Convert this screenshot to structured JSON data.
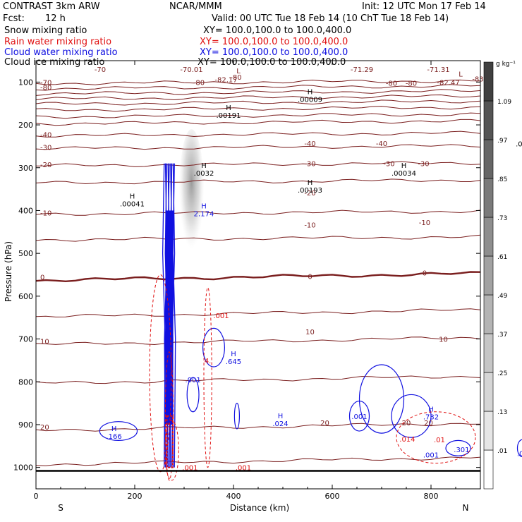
{
  "header": {
    "model": "CONTRAST  3km ARW",
    "center": "NCAR/MMM",
    "init": "Init: 12 UTC Mon 17 Feb 14",
    "fcst_label": "Fcst:",
    "fcst_value": "12 h",
    "valid": "Valid: 00 UTC Tue 18 Feb 14 (10 ChT Tue 18 Feb 14)"
  },
  "fields": [
    {
      "name": "Snow mixing ratio",
      "xy": "XY= 100.0,100.0 to 100.0,400.0",
      "color": "#000000"
    },
    {
      "name": "Rain water mixing ratio",
      "xy": "XY= 100.0,100.0 to 100.0,400.0",
      "color": "#e01010"
    },
    {
      "name": "Cloud water mixing ratio",
      "xy": "XY= 100.0,100.0 to 100.0,400.0",
      "color": "#1010e0"
    },
    {
      "name": "Cloud ice mixing ratio",
      "xy": "XY= 100.0,100.0 to 100.0,400.0",
      "color": "#000000"
    }
  ],
  "chart_data": {
    "type": "cross-section contour",
    "xlabel": "Distance (km)",
    "ylabel": "Pressure (hPa)",
    "xlim": [
      0,
      900
    ],
    "ylim": [
      1050,
      50
    ],
    "x_ticks": [
      0,
      200,
      400,
      600,
      800
    ],
    "y_ticks": [
      100,
      200,
      300,
      400,
      500,
      600,
      700,
      800,
      900,
      1000
    ],
    "x_end_labels": {
      "left": "S",
      "right": "N"
    },
    "colorbar": {
      "unit": "g kg⁻¹",
      "levels": [
        0.01,
        0.13,
        0.25,
        0.37,
        0.49,
        0.61,
        0.73,
        0.85,
        0.97,
        1.09
      ],
      "labels": [
        ".01",
        ".13",
        ".25",
        ".37",
        ".49",
        ".61",
        ".73",
        ".85",
        ".97",
        "1.09"
      ],
      "colors": [
        "#ffffff",
        "#e6e6e6",
        "#d6d6d6",
        "#c6c6c6",
        "#b4b4b4",
        "#a2a2a2",
        "#8e8e8e",
        "#7a7a7a",
        "#666666",
        "#545454",
        "#404040"
      ]
    },
    "isotherm_color": "#7a1e1e",
    "isotherms": [
      {
        "label": "-70",
        "base_p": 100,
        "bold": false
      },
      {
        "label": "-80",
        "base_p": 112,
        "bold": false
      },
      {
        "label": "",
        "base_p": 124,
        "bold": false
      },
      {
        "label": "",
        "base_p": 136,
        "bold": false
      },
      {
        "label": "",
        "base_p": 148,
        "bold": false
      },
      {
        "label": "",
        "base_p": 162,
        "bold": false
      },
      {
        "label": "",
        "base_p": 178,
        "bold": false
      },
      {
        "label": "",
        "base_p": 194,
        "bold": false
      },
      {
        "label": "-40",
        "base_p": 222,
        "bold": false
      },
      {
        "label": "-30",
        "base_p": 252,
        "bold": false
      },
      {
        "label": "-20",
        "base_p": 292,
        "bold": false
      },
      {
        "label": "",
        "base_p": 332,
        "bold": false
      },
      {
        "label": "-10",
        "base_p": 405,
        "bold": false
      },
      {
        "label": "",
        "base_p": 465,
        "bold": false
      },
      {
        "label": "0",
        "base_p": 555,
        "bold": true
      },
      {
        "label": "",
        "base_p": 640,
        "bold": false
      },
      {
        "label": "10",
        "base_p": 705,
        "bold": false
      },
      {
        "label": "",
        "base_p": 795,
        "bold": false
      },
      {
        "label": "20",
        "base_p": 905,
        "bold": false
      },
      {
        "label": "",
        "base_p": 985,
        "bold": false
      }
    ],
    "temperature_labels": [
      {
        "text": "-70",
        "x": 130,
        "p": 70
      },
      {
        "text": "-70.01",
        "x": 315,
        "p": 70
      },
      {
        "text": "-71.29",
        "x": 660,
        "p": 70
      },
      {
        "text": "-71.31",
        "x": 815,
        "p": 70
      },
      {
        "text": "-80",
        "x": 405,
        "p": 88
      },
      {
        "text": "-80",
        "x": 330,
        "p": 100
      },
      {
        "text": "-80",
        "x": 720,
        "p": 102
      },
      {
        "text": "-80",
        "x": 760,
        "p": 102
      },
      {
        "text": "-82.17",
        "x": 385,
        "p": 94
      },
      {
        "text": "-82.47",
        "x": 835,
        "p": 100
      },
      {
        "text": "-83",
        "x": 895,
        "p": 92
      },
      {
        "text": "-40",
        "x": 555,
        "p": 243
      },
      {
        "text": "-40",
        "x": 700,
        "p": 243
      },
      {
        "text": "-30",
        "x": 555,
        "p": 290
      },
      {
        "text": "-30",
        "x": 715,
        "p": 290
      },
      {
        "text": "-30",
        "x": 785,
        "p": 290
      },
      {
        "text": "-20",
        "x": 555,
        "p": 358
      },
      {
        "text": "-10",
        "x": 555,
        "p": 433
      },
      {
        "text": "-10",
        "x": 787,
        "p": 427
      },
      {
        "text": "0",
        "x": 555,
        "p": 553
      },
      {
        "text": "0",
        "x": 787,
        "p": 545
      },
      {
        "text": "10",
        "x": 555,
        "p": 683
      },
      {
        "text": "10",
        "x": 825,
        "p": 700
      },
      {
        "text": "20",
        "x": 585,
        "p": 895
      },
      {
        "text": "20",
        "x": 750,
        "p": 895
      },
      {
        "text": "20",
        "x": 795,
        "p": 895
      }
    ],
    "extrema": [
      {
        "kind": "L",
        "x": 410,
        "p": 80,
        "color": "#7a1e1e"
      },
      {
        "kind": "L",
        "x": 860,
        "p": 87,
        "color": "#7a1e1e"
      },
      {
        "kind": "L",
        "x": 993,
        "p": 80,
        "color": "#7a1e1e"
      },
      {
        "kind": "H",
        "value": ".00009",
        "x": 555,
        "p": 128,
        "color": "#000000"
      },
      {
        "kind": "H",
        "value": ".00191",
        "x": 390,
        "p": 165,
        "color": "#000000"
      },
      {
        "kind": "H",
        "value": ".0077",
        "x": 992,
        "p": 232,
        "color": "#000000"
      },
      {
        "kind": "H",
        "value": ".0032",
        "x": 340,
        "p": 300,
        "color": "#000000"
      },
      {
        "kind": "H",
        "value": ".00193",
        "x": 555,
        "p": 340,
        "color": "#000000"
      },
      {
        "kind": "H",
        "value": ".00034",
        "x": 745,
        "p": 300,
        "color": "#000000"
      },
      {
        "kind": "H",
        "value": ".00041",
        "x": 195,
        "p": 372,
        "color": "#000000"
      },
      {
        "kind": "H",
        "value": "2.174",
        "x": 340,
        "p": 395,
        "color": "#1010e0"
      },
      {
        "kind": "H",
        "value": ".645",
        "x": 400,
        "p": 740,
        "color": "#1010e0"
      },
      {
        "kind": "H",
        "value": ".024",
        "x": 495,
        "p": 885,
        "color": "#1010e0"
      },
      {
        "kind": "H",
        "value": ".732",
        "x": 800,
        "p": 870,
        "color": "#1010e0"
      },
      {
        "kind": "H",
        "value": ".166",
        "x": 158,
        "p": 915,
        "color": "#1010e0"
      },
      {
        "kind": "H",
        "value": ".043",
        "x": 990,
        "p": 955,
        "color": "#1010e0"
      }
    ],
    "contour_labels": [
      {
        "text": ".001",
        "x": 375,
        "p": 645,
        "color": "#e01010"
      },
      {
        "text": "4.",
        "x": 348,
        "p": 750,
        "color": "#e01010"
      },
      {
        "text": ".001",
        "x": 318,
        "p": 795,
        "color": "#1010e0"
      },
      {
        "text": ".001",
        "x": 655,
        "p": 880,
        "color": "#1010e0"
      },
      {
        "text": ".001",
        "x": 800,
        "p": 970,
        "color": "#1010e0"
      },
      {
        "text": ".301",
        "x": 862,
        "p": 958,
        "color": "#1010e0"
      },
      {
        "text": ".01",
        "x": 817,
        "p": 935,
        "color": "#e01010"
      },
      {
        "text": ".014",
        "x": 752,
        "p": 933,
        "color": "#e01010"
      },
      {
        "text": ".001",
        "x": 312,
        "p": 1000,
        "color": "#e01010"
      },
      {
        "text": ".001",
        "x": 420,
        "p": 1000,
        "color": "#e01010"
      }
    ],
    "snow_plume": {
      "x_range": [
        295,
        335
      ],
      "p_range": [
        240,
        550
      ],
      "peak_value": 0.49
    }
  }
}
